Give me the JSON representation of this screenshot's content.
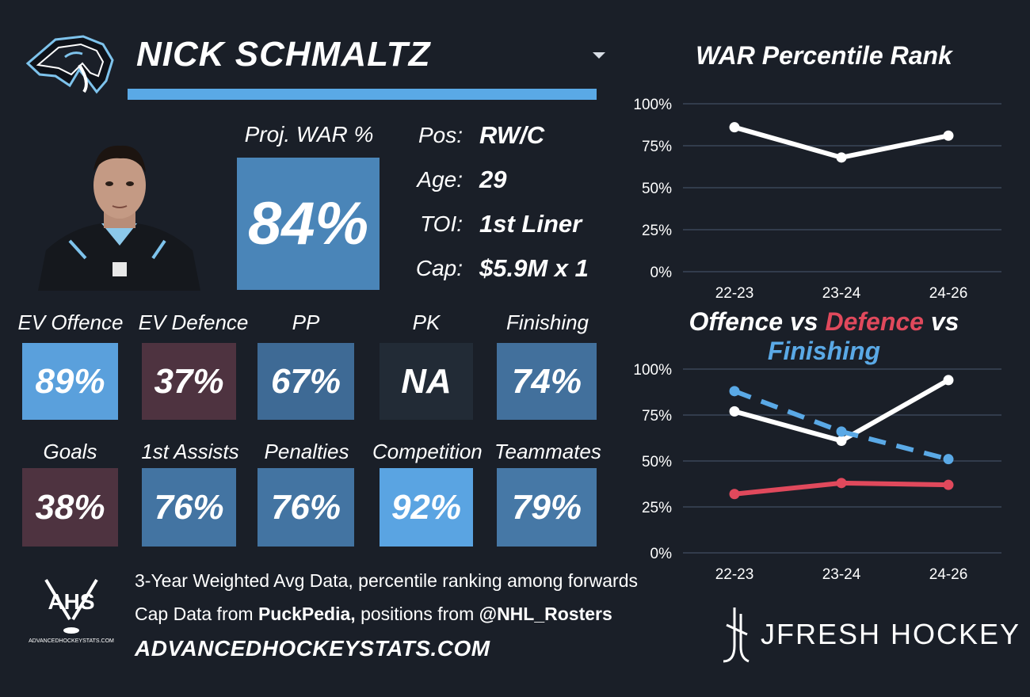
{
  "player": {
    "name": "NICK SCHMALTZ",
    "proj_war_label": "Proj. WAR %",
    "proj_war_value": "84%"
  },
  "info": [
    {
      "label": "Pos:",
      "value": "RW/C"
    },
    {
      "label": "Age:",
      "value": "29"
    },
    {
      "label": "TOI:",
      "value": "1st Liner"
    },
    {
      "label": "Cap:",
      "value": "$5.9M x 1"
    }
  ],
  "tiles": [
    {
      "label": "EV Offence",
      "value": "89%",
      "color": "#5aa0dc"
    },
    {
      "label": "EV Defence",
      "value": "37%",
      "color": "#4e3340"
    },
    {
      "label": "PP",
      "value": "67%",
      "color": "#3e6a95"
    },
    {
      "label": "PK",
      "value": "NA",
      "color": "#222b36"
    },
    {
      "label": "Finishing",
      "value": "74%",
      "color": "#42709c"
    },
    {
      "label": "Goals",
      "value": "38%",
      "color": "#4e3340"
    },
    {
      "label": "1st Assists",
      "value": "76%",
      "color": "#4374a2"
    },
    {
      "label": "Penalties",
      "value": "76%",
      "color": "#4374a2"
    },
    {
      "label": "Competition",
      "value": "92%",
      "color": "#5aa4e2"
    },
    {
      "label": "Teammates",
      "value": "79%",
      "color": "#4678a6"
    }
  ],
  "chart_data": [
    {
      "type": "line",
      "title": "WAR Percentile Rank",
      "categories": [
        "22-23",
        "23-24",
        "24-26"
      ],
      "yticks": [
        "100%",
        "75%",
        "50%",
        "25%",
        "0%"
      ],
      "ylim": [
        0,
        100
      ],
      "grid": true,
      "series": [
        {
          "values": [
            86,
            68,
            81
          ],
          "color": "#ffffff",
          "style": "solid"
        }
      ]
    },
    {
      "type": "line",
      "title_parts": [
        "Offence",
        " vs ",
        "Defence",
        " vs ",
        "Finishing"
      ],
      "title_colors": [
        "#ffffff",
        "#ffffff",
        "#e0495c",
        "#ffffff",
        "#5aa9e6"
      ],
      "categories": [
        "22-23",
        "23-24",
        "24-26"
      ],
      "yticks": [
        "100%",
        "75%",
        "50%",
        "25%",
        "0%"
      ],
      "ylim": [
        0,
        100
      ],
      "grid": true,
      "series": [
        {
          "name": "Offence",
          "values": [
            77,
            61,
            94
          ],
          "color": "#ffffff",
          "style": "solid"
        },
        {
          "name": "Defence",
          "values": [
            32,
            38,
            37
          ],
          "color": "#e0495c",
          "style": "solid"
        },
        {
          "name": "Finishing",
          "values": [
            88,
            66,
            51
          ],
          "color": "#5aa9e6",
          "style": "dashed"
        }
      ]
    }
  ],
  "footer": {
    "ahs_logo_text": "AHS",
    "ahs_logo_sub": "ADVANCEDHOCKEYSTATS.COM",
    "line1": "3-Year Weighted Avg Data, percentile ranking among forwards",
    "line2_prefix": "Cap Data from ",
    "line2_source1": "PuckPedia,",
    "line2_mid": " positions from ",
    "line2_source2": "@NHL_Rosters",
    "site": "ADVANCEDHOCKEYSTATS.COM",
    "brand": "JFRESH HOCKEY"
  },
  "icons": {
    "team_logo": "mammoth-logo-icon",
    "dropdown": "chevron-down-icon",
    "ahs_logo": "hockey-sticks-icon",
    "jfresh_logo": "jfresh-stick-icon"
  }
}
